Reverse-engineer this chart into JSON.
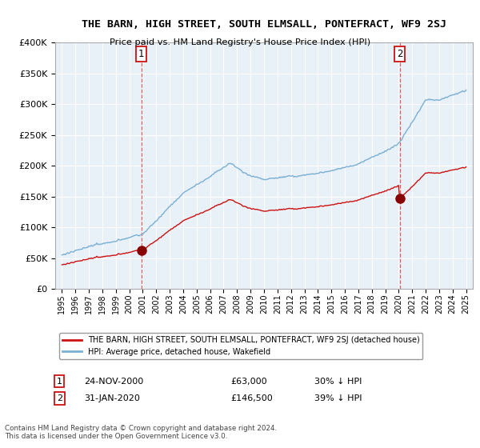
{
  "title": "THE BARN, HIGH STREET, SOUTH ELMSALL, PONTEFRACT, WF9 2SJ",
  "subtitle": "Price paid vs. HM Land Registry's House Price Index (HPI)",
  "legend_line1": "THE BARN, HIGH STREET, SOUTH ELMSALL, PONTEFRACT, WF9 2SJ (detached house)",
  "legend_line2": "HPI: Average price, detached house, Wakefield",
  "footer": "Contains HM Land Registry data © Crown copyright and database right 2024.\nThis data is licensed under the Open Government Licence v3.0.",
  "point1_date": "24-NOV-2000",
  "point1_price": "£63,000",
  "point1_hpi": "30% ↓ HPI",
  "point2_date": "31-JAN-2020",
  "point2_price": "£146,500",
  "point2_hpi": "39% ↓ HPI",
  "sale1_x": 2000.9,
  "sale1_y": 63000,
  "sale2_x": 2020.08,
  "sale2_y": 146500,
  "ylim": [
    0,
    400000
  ],
  "xlim": [
    1994.5,
    2025.5
  ],
  "hpi_color": "#7aafd4",
  "sale_color": "#cc1111",
  "background_color": "#ffffff",
  "plot_bg_color": "#e8f0f8",
  "grid_color": "#ffffff"
}
